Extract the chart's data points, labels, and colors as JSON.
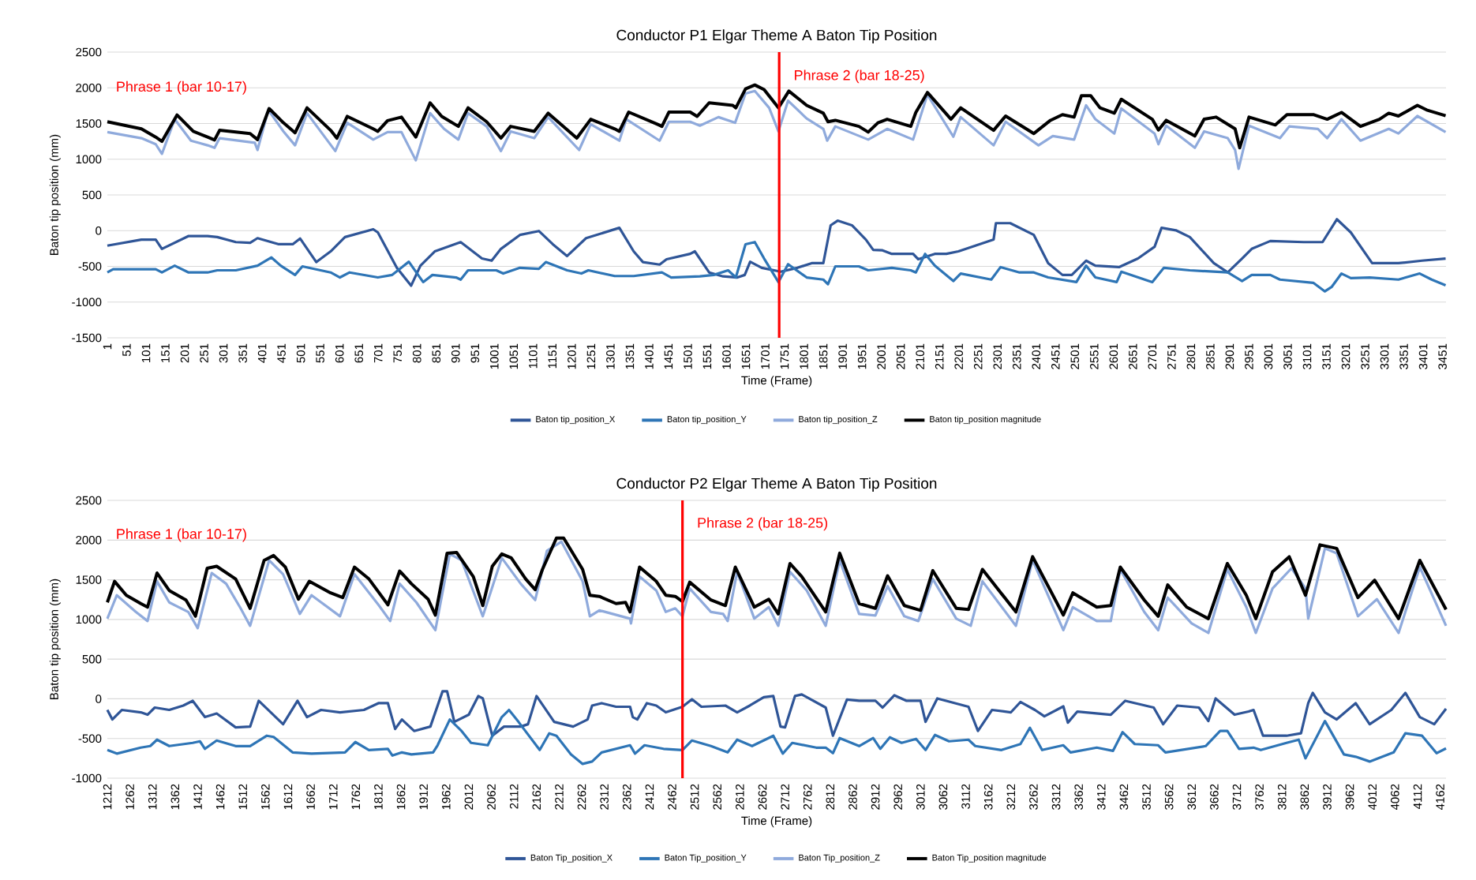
{
  "chart_data": [
    {
      "type": "line",
      "title": "Conductor P1 Elgar Theme A Baton Tip Position",
      "xlabel": "Time (Frame)",
      "ylabel": "Baton tip position (mm)",
      "xlim": [
        1,
        3460
      ],
      "ylim": [
        -1500,
        2500
      ],
      "xticks": [
        1,
        51,
        101,
        151,
        201,
        251,
        301,
        351,
        401,
        451,
        501,
        551,
        601,
        651,
        701,
        751,
        801,
        851,
        901,
        951,
        1001,
        1051,
        1101,
        1151,
        1201,
        1251,
        1301,
        1351,
        1401,
        1451,
        1501,
        1551,
        1601,
        1651,
        1701,
        1751,
        1801,
        1851,
        1901,
        1951,
        2001,
        2051,
        2101,
        2151,
        2201,
        2251,
        2301,
        2351,
        2401,
        2451,
        2501,
        2551,
        2601,
        2651,
        2701,
        2751,
        2801,
        2851,
        2901,
        2951,
        3001,
        3051,
        3101,
        3151,
        3201,
        3251,
        3301,
        3351,
        3401,
        3451
      ],
      "yticks": [
        -1500,
        -1000,
        -500,
        0,
        500,
        1000,
        1500,
        2000,
        2500
      ],
      "grid": "y",
      "legend": "bottom",
      "ref_lines": [
        {
          "axis": "x",
          "value": 1737,
          "color": "#ff0000"
        }
      ],
      "annotations": [
        "Phrase 1 (bar 10-17)",
        "Phrase 2 (bar 18-25)"
      ],
      "series": [
        {
          "name": "Baton tip_position_X",
          "color": "#2f5597",
          "x": [
            1,
            89,
            126,
            142,
            211,
            260,
            285,
            333,
            370,
            389,
            444,
            480,
            499,
            541,
            578,
            615,
            688,
            700,
            749,
            786,
            810,
            847,
            914,
            969,
            994,
            1018,
            1067,
            1116,
            1152,
            1189,
            1238,
            1324,
            1361,
            1385,
            1428,
            1446,
            1507,
            1519,
            1556,
            1592,
            1629,
            1648,
            1662,
            1692,
            1741,
            1784,
            1821,
            1851,
            1870,
            1888,
            1925,
            1961,
            1980,
            2004,
            2028,
            2083,
            2096,
            2139,
            2169,
            2200,
            2291,
            2297,
            2334,
            2395,
            2432,
            2469,
            2493,
            2530,
            2554,
            2615,
            2664,
            2707,
            2725,
            2762,
            2798,
            2860,
            2896,
            2933,
            2958,
            3006,
            3092,
            3141,
            3178,
            3214,
            3269,
            3337,
            3398,
            3459
          ],
          "values": [
            -210,
            -125,
            -125,
            -255,
            -75,
            -75,
            -90,
            -160,
            -170,
            -105,
            -190,
            -190,
            -110,
            -440,
            -290,
            -90,
            20,
            -25,
            -520,
            -770,
            -490,
            -290,
            -160,
            -390,
            -420,
            -255,
            -60,
            -5,
            -190,
            -355,
            -105,
            40,
            -290,
            -440,
            -475,
            -400,
            -325,
            -290,
            -585,
            -640,
            -655,
            -620,
            -435,
            -520,
            -575,
            -520,
            -455,
            -455,
            75,
            140,
            75,
            -125,
            -270,
            -275,
            -325,
            -325,
            -400,
            -325,
            -325,
            -290,
            -125,
            105,
            105,
            -60,
            -455,
            -620,
            -620,
            -420,
            -490,
            -510,
            -390,
            -225,
            40,
            5,
            -90,
            -455,
            -585,
            -390,
            -255,
            -145,
            -160,
            -160,
            160,
            -25,
            -455,
            -455,
            -420,
            -390
          ]
        },
        {
          "name": "Baton tip_position_Y",
          "color": "#2e75b6",
          "x": [
            1,
            16,
            126,
            142,
            175,
            211,
            260,
            285,
            333,
            389,
            425,
            449,
            486,
            505,
            578,
            602,
            627,
            700,
            737,
            780,
            817,
            841,
            902,
            914,
            933,
            1006,
            1024,
            1067,
            1116,
            1134,
            1189,
            1226,
            1244,
            1312,
            1361,
            1434,
            1458,
            1532,
            1568,
            1605,
            1625,
            1650,
            1674,
            1698,
            1735,
            1760,
            1808,
            1851,
            1863,
            1882,
            1943,
            1967,
            2028,
            2077,
            2090,
            2114,
            2139,
            2187,
            2206,
            2285,
            2309,
            2358,
            2395,
            2432,
            2505,
            2530,
            2554,
            2609,
            2621,
            2701,
            2731,
            2798,
            2896,
            2933,
            2958,
            3006,
            3031,
            3117,
            3147,
            3165,
            3190,
            3214,
            3263,
            3337,
            3392,
            3423,
            3459
          ],
          "values": [
            -585,
            -540,
            -540,
            -585,
            -490,
            -585,
            -585,
            -555,
            -555,
            -490,
            -375,
            -490,
            -620,
            -500,
            -585,
            -655,
            -585,
            -655,
            -620,
            -435,
            -720,
            -620,
            -655,
            -685,
            -555,
            -555,
            -600,
            -520,
            -535,
            -440,
            -555,
            -600,
            -555,
            -635,
            -635,
            -585,
            -655,
            -640,
            -620,
            -555,
            -655,
            -190,
            -160,
            -390,
            -720,
            -470,
            -655,
            -685,
            -750,
            -500,
            -500,
            -555,
            -520,
            -555,
            -585,
            -325,
            -490,
            -705,
            -600,
            -685,
            -510,
            -585,
            -585,
            -655,
            -720,
            -490,
            -655,
            -720,
            -575,
            -720,
            -520,
            -555,
            -585,
            -705,
            -620,
            -620,
            -685,
            -730,
            -850,
            -785,
            -600,
            -665,
            -655,
            -685,
            -600,
            -685,
            -765
          ]
        },
        {
          "name": "Baton tip_position_Z",
          "color": "#8faadc",
          "x": [
            1,
            89,
            126,
            142,
            175,
            217,
            260,
            278,
            291,
            382,
            389,
            417,
            456,
            486,
            517,
            590,
            621,
            688,
            725,
            761,
            798,
            835,
            871,
            908,
            933,
            981,
            1018,
            1043,
            1104,
            1140,
            1220,
            1250,
            1324,
            1342,
            1428,
            1452,
            1507,
            1532,
            1580,
            1623,
            1650,
            1674,
            1711,
            1735,
            1760,
            1808,
            1851,
            1861,
            1882,
            1967,
            2016,
            2083,
            2120,
            2187,
            2206,
            2291,
            2322,
            2407,
            2444,
            2499,
            2530,
            2554,
            2603,
            2621,
            2707,
            2717,
            2737,
            2811,
            2835,
            2896,
            2915,
            2924,
            2951,
            3031,
            3055,
            3129,
            3153,
            3190,
            3239,
            3312,
            3337,
            3386,
            3459
          ],
          "values": [
            1380,
            1295,
            1210,
            1075,
            1560,
            1260,
            1195,
            1160,
            1295,
            1230,
            1130,
            1690,
            1390,
            1195,
            1645,
            1115,
            1510,
            1275,
            1380,
            1380,
            985,
            1645,
            1425,
            1275,
            1645,
            1460,
            1115,
            1390,
            1295,
            1590,
            1130,
            1490,
            1260,
            1560,
            1260,
            1525,
            1525,
            1470,
            1590,
            1510,
            1920,
            1955,
            1720,
            1390,
            1820,
            1570,
            1425,
            1260,
            1460,
            1275,
            1425,
            1275,
            1905,
            1315,
            1590,
            1195,
            1525,
            1195,
            1325,
            1275,
            1755,
            1560,
            1360,
            1710,
            1360,
            1210,
            1470,
            1160,
            1390,
            1295,
            1130,
            865,
            1470,
            1295,
            1460,
            1425,
            1295,
            1560,
            1260,
            1425,
            1360,
            1605,
            1380
          ]
        },
        {
          "name": "Baton tip_position magnitude",
          "color": "#000000",
          "x": [
            1,
            89,
            126,
            142,
            181,
            223,
            260,
            278,
            291,
            370,
            389,
            419,
            456,
            486,
            517,
            578,
            594,
            621,
            688,
            700,
            725,
            761,
            798,
            835,
            865,
            908,
            933,
            981,
            1018,
            1043,
            1104,
            1140,
            1214,
            1250,
            1312,
            1324,
            1348,
            1422,
            1434,
            1452,
            1507,
            1525,
            1556,
            1617,
            1625,
            1650,
            1674,
            1698,
            1735,
            1762,
            1808,
            1851,
            1863,
            1882,
            1943,
            1967,
            1992,
            2016,
            2077,
            2090,
            2120,
            2181,
            2206,
            2291,
            2322,
            2395,
            2438,
            2469,
            2499,
            2518,
            2542,
            2566,
            2603,
            2621,
            2701,
            2717,
            2737,
            2811,
            2835,
            2866,
            2915,
            2927,
            2951,
            3019,
            3049,
            3117,
            3153,
            3190,
            3239,
            3288,
            3312,
            3337,
            3386,
            3410,
            3459
          ],
          "values": [
            1525,
            1425,
            1310,
            1250,
            1620,
            1390,
            1310,
            1270,
            1405,
            1360,
            1275,
            1710,
            1510,
            1370,
            1720,
            1405,
            1295,
            1600,
            1425,
            1390,
            1540,
            1590,
            1310,
            1790,
            1600,
            1460,
            1720,
            1525,
            1295,
            1460,
            1390,
            1645,
            1295,
            1560,
            1425,
            1390,
            1660,
            1490,
            1460,
            1660,
            1660,
            1600,
            1790,
            1755,
            1720,
            1985,
            2040,
            1975,
            1720,
            1955,
            1755,
            1645,
            1525,
            1545,
            1460,
            1380,
            1510,
            1560,
            1460,
            1655,
            1935,
            1560,
            1720,
            1405,
            1605,
            1360,
            1545,
            1625,
            1590,
            1890,
            1890,
            1720,
            1645,
            1840,
            1560,
            1410,
            1545,
            1325,
            1560,
            1590,
            1425,
            1160,
            1590,
            1480,
            1625,
            1625,
            1560,
            1655,
            1460,
            1560,
            1645,
            1605,
            1755,
            1690,
            1610
          ]
        }
      ]
    },
    {
      "type": "line",
      "title": "Conductor P2 Elgar Theme A Baton Tip Position",
      "xlabel": "Time (Frame)",
      "ylabel": "Baton tip position (mm)",
      "xlim": [
        1212,
        4175
      ],
      "ylim": [
        -1000,
        2500
      ],
      "xticks": [
        1212,
        1262,
        1312,
        1362,
        1412,
        1462,
        1512,
        1562,
        1612,
        1662,
        1712,
        1762,
        1812,
        1862,
        1912,
        1962,
        2012,
        2062,
        2112,
        2162,
        2212,
        2262,
        2312,
        2362,
        2412,
        2462,
        2512,
        2562,
        2612,
        2662,
        2712,
        2762,
        2812,
        2862,
        2912,
        2962,
        3012,
        3062,
        3112,
        3162,
        3212,
        3262,
        3312,
        3362,
        3412,
        3462,
        3512,
        3562,
        3612,
        3662,
        3712,
        3762,
        3812,
        3862,
        3912,
        3962,
        4012,
        4062,
        4112,
        4162
      ],
      "yticks": [
        -1000,
        -500,
        0,
        500,
        1000,
        1500,
        2000,
        2500
      ],
      "grid": "y",
      "legend": "bottom",
      "ref_lines": [
        {
          "axis": "x",
          "value": 2485,
          "color": "#ff0000"
        }
      ],
      "annotations": [
        "Phrase 1 (bar 10-17)",
        "Phrase 2 (bar 18-25)"
      ],
      "series": [
        {
          "name": "Baton Tip_position_X",
          "color": "#2f5597",
          "x": [
            1212,
            1223,
            1244,
            1286,
            1301,
            1317,
            1349,
            1380,
            1401,
            1428,
            1454,
            1496,
            1528,
            1547,
            1601,
            1633,
            1654,
            1685,
            1727,
            1780,
            1812,
            1833,
            1849,
            1864,
            1891,
            1927,
            1954,
            1964,
            1980,
            2012,
            2033,
            2043,
            2064,
            2090,
            2127,
            2143,
            2162,
            2201,
            2222,
            2243,
            2275,
            2285,
            2306,
            2338,
            2369,
            2375,
            2385,
            2406,
            2427,
            2448,
            2485,
            2506,
            2527,
            2580,
            2606,
            2634,
            2665,
            2686,
            2702,
            2712,
            2734,
            2749,
            2802,
            2818,
            2849,
            2876,
            2912,
            2928,
            2954,
            2981,
            3012,
            3023,
            3049,
            3118,
            3139,
            3170,
            3212,
            3233,
            3265,
            3286,
            3328,
            3338,
            3359,
            3433,
            3465,
            3528,
            3549,
            3580,
            3628,
            3649,
            3665,
            3707,
            3738,
            3749,
            3770,
            3822,
            3854,
            3870,
            3880,
            3907,
            3933,
            3975,
            4006,
            4054,
            4085,
            4117,
            4149,
            4175
          ],
          "values": [
            -140,
            -260,
            -140,
            -170,
            -200,
            -110,
            -140,
            -85,
            -25,
            -230,
            -185,
            -360,
            -350,
            -25,
            -320,
            -25,
            -230,
            -140,
            -170,
            -140,
            -55,
            -55,
            -380,
            -260,
            -405,
            -350,
            95,
            95,
            -290,
            -200,
            35,
            5,
            -465,
            -350,
            -350,
            -320,
            35,
            -290,
            -320,
            -350,
            -260,
            -85,
            -55,
            -100,
            -100,
            -230,
            -260,
            -55,
            -85,
            -170,
            -100,
            -5,
            -100,
            -85,
            -170,
            -85,
            20,
            35,
            -350,
            -360,
            35,
            55,
            -110,
            -465,
            -10,
            -25,
            -25,
            -110,
            45,
            -25,
            -25,
            -290,
            5,
            -100,
            -405,
            -140,
            -170,
            -40,
            -140,
            -220,
            -95,
            -300,
            -160,
            -200,
            -25,
            -110,
            -320,
            -85,
            -110,
            -280,
            5,
            -200,
            -160,
            -140,
            -465,
            -465,
            -435,
            -55,
            75,
            -170,
            -260,
            -55,
            -320,
            -140,
            75,
            -230,
            -320,
            -125
          ]
        },
        {
          "name": "Baton Tip_position_Y",
          "color": "#2e75b6",
          "x": [
            1212,
            1233,
            1286,
            1307,
            1322,
            1349,
            1401,
            1417,
            1428,
            1454,
            1496,
            1528,
            1565,
            1580,
            1622,
            1664,
            1738,
            1761,
            1791,
            1833,
            1843,
            1864,
            1885,
            1933,
            1943,
            1970,
            1996,
            2017,
            2054,
            2085,
            2101,
            2122,
            2169,
            2190,
            2206,
            2238,
            2264,
            2285,
            2306,
            2369,
            2380,
            2401,
            2443,
            2485,
            2506,
            2548,
            2585,
            2606,
            2639,
            2686,
            2707,
            2728,
            2781,
            2802,
            2818,
            2833,
            2876,
            2907,
            2923,
            2944,
            2970,
            3002,
            3023,
            3044,
            3075,
            3118,
            3133,
            3191,
            3233,
            3254,
            3281,
            3328,
            3344,
            3402,
            3438,
            3459,
            3486,
            3538,
            3554,
            3643,
            3675,
            3691,
            3717,
            3749,
            3765,
            3822,
            3849,
            3864,
            3907,
            3949,
            3975,
            4006,
            4059,
            4085,
            4122,
            4154,
            4175
          ],
          "values": [
            -645,
            -690,
            -615,
            -595,
            -515,
            -595,
            -555,
            -535,
            -630,
            -525,
            -595,
            -595,
            -465,
            -480,
            -675,
            -690,
            -675,
            -545,
            -645,
            -630,
            -715,
            -675,
            -700,
            -675,
            -585,
            -260,
            -405,
            -555,
            -585,
            -230,
            -140,
            -290,
            -645,
            -435,
            -465,
            -700,
            -820,
            -790,
            -675,
            -585,
            -690,
            -585,
            -630,
            -645,
            -525,
            -595,
            -675,
            -515,
            -595,
            -465,
            -690,
            -555,
            -615,
            -615,
            -685,
            -495,
            -595,
            -495,
            -630,
            -485,
            -555,
            -505,
            -645,
            -455,
            -535,
            -515,
            -595,
            -645,
            -570,
            -365,
            -645,
            -585,
            -675,
            -615,
            -655,
            -420,
            -570,
            -585,
            -675,
            -595,
            -405,
            -405,
            -630,
            -615,
            -645,
            -555,
            -515,
            -750,
            -280,
            -700,
            -730,
            -790,
            -675,
            -435,
            -465,
            -685,
            -625
          ]
        },
        {
          "name": "Baton Tip_position_Z",
          "color": "#8faadc",
          "x": [
            1212,
            1233,
            1275,
            1301,
            1322,
            1349,
            1391,
            1412,
            1443,
            1475,
            1507,
            1528,
            1570,
            1601,
            1638,
            1664,
            1727,
            1759,
            1812,
            1838,
            1859,
            1896,
            1938,
            1970,
            1996,
            2043,
            2085,
            2127,
            2159,
            2185,
            2217,
            2264,
            2280,
            2301,
            2369,
            2371,
            2390,
            2427,
            2448,
            2469,
            2485,
            2501,
            2548,
            2575,
            2585,
            2606,
            2644,
            2676,
            2697,
            2723,
            2760,
            2802,
            2833,
            2876,
            2912,
            2939,
            2976,
            3007,
            3039,
            3091,
            3123,
            3149,
            3223,
            3260,
            3328,
            3349,
            3402,
            3433,
            3454,
            3507,
            3538,
            3559,
            3612,
            3649,
            3691,
            3733,
            3754,
            3791,
            3833,
            3864,
            3870,
            3907,
            3933,
            3980,
            4022,
            4070,
            4117,
            4175
          ],
          "values": [
            1010,
            1305,
            1095,
            980,
            1480,
            1215,
            1095,
            890,
            1585,
            1450,
            1140,
            920,
            1745,
            1570,
            1070,
            1305,
            1040,
            1570,
            1185,
            980,
            1450,
            1215,
            865,
            1825,
            1745,
            1040,
            1775,
            1450,
            1245,
            1865,
            1980,
            1480,
            1040,
            1115,
            1010,
            950,
            1540,
            1365,
            1095,
            1140,
            1040,
            1390,
            1095,
            1070,
            980,
            1600,
            1010,
            1155,
            920,
            1600,
            1365,
            920,
            1745,
            1070,
            1050,
            1420,
            1040,
            980,
            1510,
            1010,
            920,
            1480,
            920,
            1745,
            865,
            1155,
            980,
            980,
            1630,
            1095,
            865,
            1275,
            950,
            830,
            1630,
            1155,
            830,
            1390,
            1645,
            1390,
            1010,
            1895,
            1835,
            1040,
            1255,
            830,
            1660,
            920
          ]
        },
        {
          "name": "Baton Tip_position magnitude",
          "color": "#000000",
          "x": [
            1212,
            1228,
            1254,
            1286,
            1301,
            1322,
            1349,
            1386,
            1407,
            1433,
            1454,
            1496,
            1528,
            1559,
            1580,
            1606,
            1635,
            1659,
            1706,
            1733,
            1759,
            1791,
            1833,
            1859,
            1885,
            1922,
            1938,
            1964,
            1985,
            2022,
            2043,
            2064,
            2085,
            2106,
            2138,
            2159,
            2175,
            2206,
            2222,
            2264,
            2280,
            2301,
            2338,
            2359,
            2369,
            2390,
            2427,
            2448,
            2469,
            2485,
            2501,
            2548,
            2580,
            2602,
            2644,
            2676,
            2697,
            2723,
            2749,
            2802,
            2833,
            2876,
            2912,
            2939,
            2976,
            3012,
            3039,
            3091,
            3118,
            3149,
            3223,
            3260,
            3328,
            3349,
            3402,
            3433,
            3454,
            3507,
            3538,
            3559,
            3601,
            3649,
            3691,
            3733,
            3754,
            3791,
            3828,
            3864,
            3896,
            3933,
            3980,
            4017,
            4070,
            4117,
            4175
          ],
          "values": [
            1215,
            1480,
            1305,
            1200,
            1155,
            1585,
            1365,
            1245,
            1040,
            1645,
            1670,
            1510,
            1140,
            1745,
            1805,
            1660,
            1255,
            1480,
            1335,
            1275,
            1660,
            1510,
            1185,
            1610,
            1450,
            1255,
            1055,
            1835,
            1845,
            1540,
            1175,
            1670,
            1825,
            1775,
            1510,
            1375,
            1630,
            2025,
            2025,
            1630,
            1305,
            1290,
            1200,
            1215,
            1095,
            1660,
            1480,
            1305,
            1290,
            1225,
            1470,
            1245,
            1175,
            1660,
            1155,
            1255,
            1070,
            1705,
            1540,
            1095,
            1835,
            1200,
            1140,
            1550,
            1175,
            1115,
            1615,
            1140,
            1125,
            1630,
            1095,
            1790,
            1055,
            1335,
            1155,
            1175,
            1660,
            1245,
            1040,
            1435,
            1155,
            1010,
            1705,
            1305,
            1010,
            1600,
            1790,
            1305,
            1940,
            1895,
            1275,
            1495,
            1010,
            1745,
            1125
          ]
        }
      ]
    }
  ]
}
